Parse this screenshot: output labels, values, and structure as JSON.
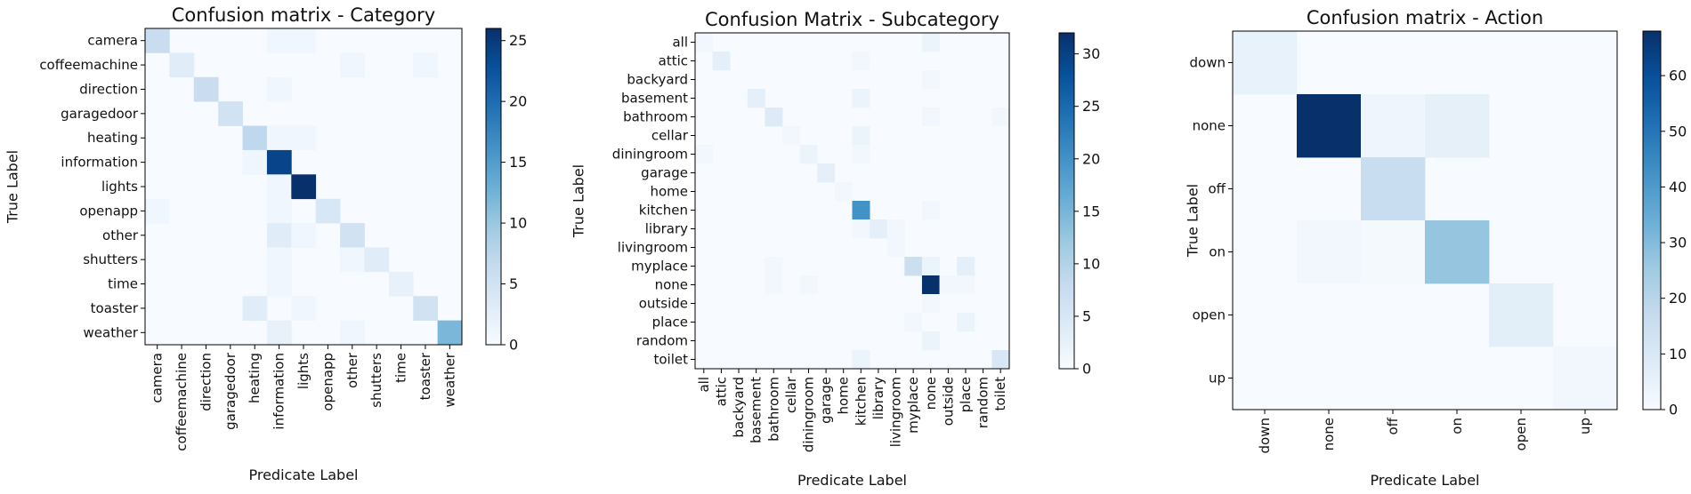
{
  "chart_data": [
    {
      "type": "heatmap",
      "title": "Confusion matrix - Category",
      "xlabel": "Predicate Label",
      "ylabel": "True Label",
      "labels": [
        "camera",
        "coffeemachine",
        "direction",
        "garagedoor",
        "heating",
        "information",
        "lights",
        "openapp",
        "other",
        "shutters",
        "time",
        "toaster",
        "weather"
      ],
      "vmax": 26,
      "colorbar_ticks": [
        0,
        5,
        10,
        15,
        20,
        25
      ],
      "cells": [
        [
          0,
          0,
          6
        ],
        [
          0,
          5,
          1
        ],
        [
          0,
          6,
          1
        ],
        [
          1,
          1,
          3
        ],
        [
          1,
          8,
          1
        ],
        [
          1,
          11,
          1
        ],
        [
          2,
          2,
          6
        ],
        [
          2,
          5,
          1
        ],
        [
          3,
          3,
          5
        ],
        [
          4,
          4,
          7
        ],
        [
          4,
          5,
          1
        ],
        [
          4,
          6,
          1
        ],
        [
          5,
          4,
          1
        ],
        [
          5,
          5,
          24
        ],
        [
          6,
          5,
          1
        ],
        [
          6,
          6,
          26
        ],
        [
          7,
          0,
          1
        ],
        [
          7,
          5,
          1
        ],
        [
          7,
          7,
          4
        ],
        [
          8,
          5,
          3
        ],
        [
          8,
          6,
          1
        ],
        [
          8,
          8,
          5
        ],
        [
          9,
          5,
          1
        ],
        [
          9,
          8,
          1
        ],
        [
          9,
          9,
          3
        ],
        [
          10,
          5,
          1
        ],
        [
          10,
          10,
          2
        ],
        [
          11,
          4,
          3
        ],
        [
          11,
          6,
          1
        ],
        [
          11,
          11,
          5
        ],
        [
          12,
          5,
          2
        ],
        [
          12,
          8,
          1
        ],
        [
          12,
          12,
          12
        ]
      ]
    },
    {
      "type": "heatmap",
      "title": "Confusion Matrix - Subcategory",
      "xlabel": "Predicate Label",
      "ylabel": "True Label",
      "labels": [
        "all",
        "attic",
        "backyard",
        "basement",
        "bathroom",
        "cellar",
        "diningroom",
        "garage",
        "home",
        "kitchen",
        "library",
        "livingroom",
        "myplace",
        "none",
        "outside",
        "place",
        "random",
        "toilet"
      ],
      "vmax": 32,
      "colorbar_ticks": [
        0,
        5,
        10,
        15,
        20,
        25,
        30
      ],
      "cells": [
        [
          0,
          0,
          1
        ],
        [
          0,
          13,
          2
        ],
        [
          1,
          1,
          3
        ],
        [
          1,
          9,
          1
        ],
        [
          2,
          13,
          1
        ],
        [
          3,
          3,
          3
        ],
        [
          3,
          9,
          2
        ],
        [
          4,
          4,
          4
        ],
        [
          4,
          13,
          1
        ],
        [
          4,
          17,
          1
        ],
        [
          5,
          5,
          1
        ],
        [
          5,
          9,
          2
        ],
        [
          6,
          0,
          1
        ],
        [
          6,
          6,
          2
        ],
        [
          6,
          9,
          1
        ],
        [
          7,
          7,
          3
        ],
        [
          8,
          8,
          1
        ],
        [
          9,
          9,
          20
        ],
        [
          9,
          13,
          1
        ],
        [
          10,
          9,
          1
        ],
        [
          10,
          10,
          3
        ],
        [
          10,
          11,
          1
        ],
        [
          11,
          11,
          1
        ],
        [
          12,
          4,
          1
        ],
        [
          12,
          12,
          7
        ],
        [
          12,
          13,
          2
        ],
        [
          12,
          15,
          3
        ],
        [
          13,
          4,
          1
        ],
        [
          13,
          6,
          1
        ],
        [
          13,
          13,
          32
        ],
        [
          13,
          14,
          1
        ],
        [
          13,
          15,
          1
        ],
        [
          14,
          13,
          1
        ],
        [
          15,
          12,
          1
        ],
        [
          15,
          15,
          2
        ],
        [
          16,
          13,
          2
        ],
        [
          17,
          9,
          2
        ],
        [
          17,
          17,
          5
        ]
      ]
    },
    {
      "type": "heatmap",
      "title": "Confusion matrix - Action",
      "xlabel": "Predicate Label",
      "ylabel": "True Label",
      "labels": [
        "down",
        "none",
        "off",
        "on",
        "open",
        "up"
      ],
      "vmax": 68,
      "colorbar_ticks": [
        0,
        10,
        20,
        30,
        40,
        50,
        60
      ],
      "cells": [
        [
          0,
          0,
          5
        ],
        [
          1,
          1,
          68
        ],
        [
          1,
          2,
          3
        ],
        [
          1,
          3,
          6
        ],
        [
          2,
          2,
          16
        ],
        [
          3,
          1,
          2
        ],
        [
          3,
          2,
          1
        ],
        [
          3,
          3,
          27
        ],
        [
          4,
          4,
          7
        ],
        [
          5,
          5,
          2
        ]
      ]
    }
  ]
}
